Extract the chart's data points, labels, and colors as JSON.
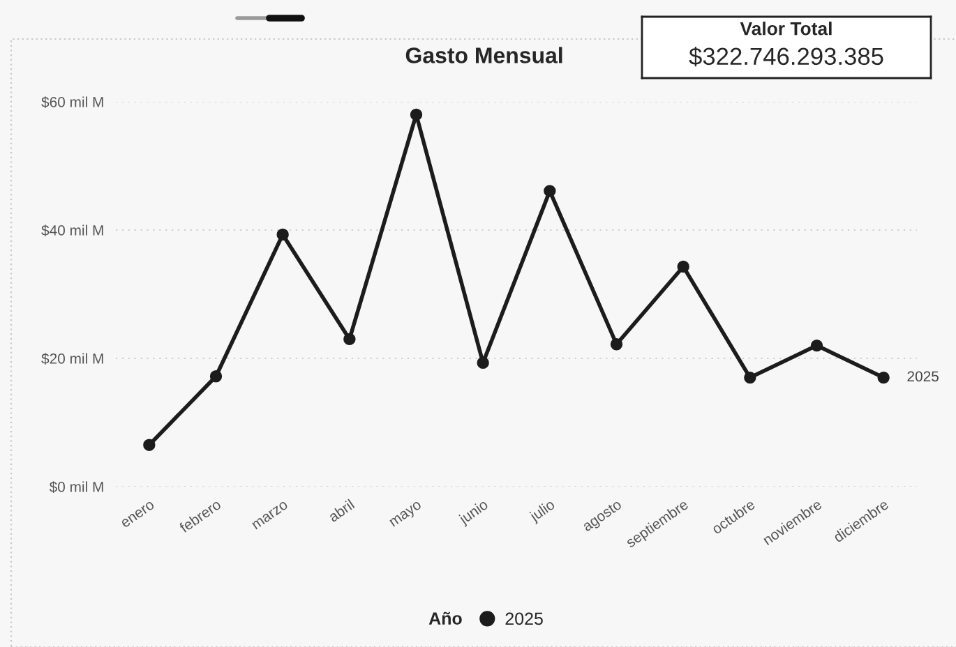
{
  "chart_data": [
    {
      "type": "line",
      "title": "Gasto Mensual",
      "categories": [
        "enero",
        "febrero",
        "marzo",
        "abril",
        "mayo",
        "junio",
        "julio",
        "agosto",
        "septiembre",
        "octubre",
        "noviembre",
        "diciembre"
      ],
      "series": [
        {
          "name": "2025",
          "color": "#1c1c1c",
          "values": [
            6.5,
            17.2,
            39.3,
            23.0,
            58.0,
            19.3,
            46.1,
            22.2,
            34.3,
            17.0,
            22.0,
            17.0
          ]
        }
      ],
      "ylim": [
        0,
        60
      ],
      "yticks": [
        {
          "value": 0,
          "label": "$0 mil M"
        },
        {
          "value": 20,
          "label": "$20 mil M"
        },
        {
          "value": 40,
          "label": "$40 mil M"
        },
        {
          "value": 60,
          "label": "$60 mil M"
        }
      ],
      "grid": "y",
      "legend": "bottom",
      "legend_title": "Año",
      "marker": "circle",
      "line_style": "solid"
    },
    {
      "type": "other",
      "title": "Valor Total",
      "annotations": [
        "$322.746.293.385"
      ]
    }
  ]
}
